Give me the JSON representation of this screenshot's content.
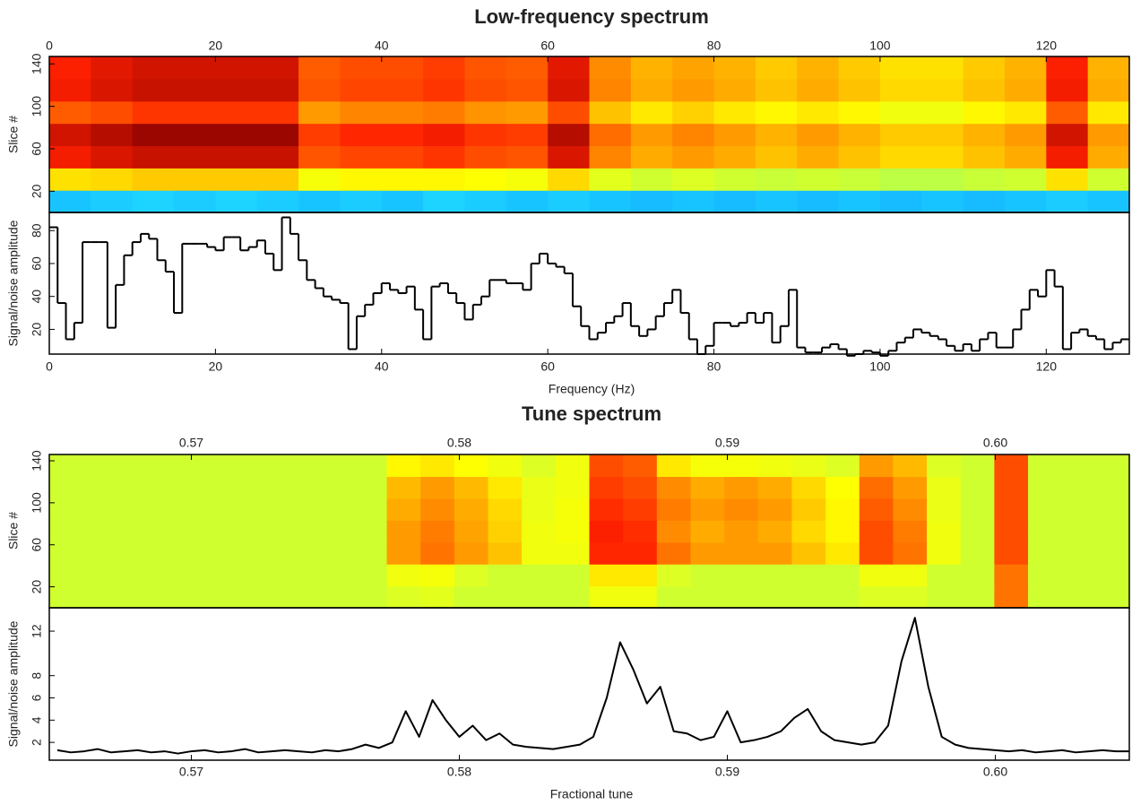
{
  "chart_data": [
    {
      "type": "spectrogram",
      "title": "Low-frequency spectrum",
      "xlabel": "Frequency (Hz)",
      "xlim": [
        0,
        130
      ],
      "xticks": [
        0,
        20,
        40,
        60,
        80,
        100,
        120
      ],
      "colormap": [
        "#00008f",
        "#0070ff",
        "#20e0ff",
        "#a0ff60",
        "#ffff00",
        "#ff9000",
        "#ff2000",
        "#800000"
      ],
      "heatmap": {
        "ylabel": "Slice #",
        "ylim": [
          0,
          147
        ],
        "yticks": [
          20,
          60,
          100,
          140
        ],
        "z": [
          [
            0.25,
            0.26,
            0.27,
            0.26,
            0.27,
            0.26,
            0.25,
            0.26,
            0.25,
            0.27,
            0.26,
            0.25,
            0.26,
            0.25,
            0.24,
            0.25,
            0.24,
            0.25,
            0.24,
            0.25,
            0.24,
            0.25,
            0.24,
            0.25,
            0.26,
            0.25
          ],
          [
            0.61,
            0.62,
            0.64,
            0.64,
            0.64,
            0.64,
            0.56,
            0.58,
            0.58,
            0.58,
            0.57,
            0.56,
            0.62,
            0.53,
            0.5,
            0.52,
            0.5,
            0.49,
            0.5,
            0.49,
            0.47,
            0.47,
            0.49,
            0.5,
            0.61,
            0.5
          ],
          [
            0.87,
            0.9,
            0.92,
            0.92,
            0.92,
            0.92,
            0.79,
            0.81,
            0.81,
            0.83,
            0.8,
            0.79,
            0.9,
            0.73,
            0.68,
            0.7,
            0.68,
            0.65,
            0.68,
            0.65,
            0.62,
            0.62,
            0.65,
            0.68,
            0.87,
            0.68
          ],
          [
            0.91,
            0.94,
            0.97,
            0.97,
            0.97,
            0.97,
            0.82,
            0.85,
            0.85,
            0.87,
            0.83,
            0.82,
            0.94,
            0.76,
            0.7,
            0.73,
            0.7,
            0.67,
            0.7,
            0.67,
            0.64,
            0.64,
            0.67,
            0.7,
            0.91,
            0.7
          ],
          [
            0.78,
            0.8,
            0.83,
            0.83,
            0.83,
            0.83,
            0.7,
            0.73,
            0.73,
            0.74,
            0.71,
            0.7,
            0.8,
            0.65,
            0.6,
            0.63,
            0.6,
            0.58,
            0.6,
            0.58,
            0.55,
            0.55,
            0.58,
            0.6,
            0.78,
            0.6
          ],
          [
            0.87,
            0.9,
            0.92,
            0.92,
            0.92,
            0.92,
            0.79,
            0.81,
            0.81,
            0.83,
            0.8,
            0.79,
            0.9,
            0.73,
            0.68,
            0.7,
            0.68,
            0.65,
            0.68,
            0.65,
            0.62,
            0.62,
            0.65,
            0.68,
            0.87,
            0.68
          ],
          [
            0.86,
            0.89,
            0.91,
            0.91,
            0.91,
            0.91,
            0.78,
            0.8,
            0.8,
            0.82,
            0.79,
            0.78,
            0.89,
            0.72,
            0.67,
            0.69,
            0.67,
            0.64,
            0.67,
            0.64,
            0.61,
            0.61,
            0.64,
            0.67,
            0.86,
            0.67
          ]
        ]
      },
      "profile": {
        "ylabel": "Signal/noise amplitude",
        "ylim": [
          5,
          91
        ],
        "yticks": [
          20,
          40,
          60,
          80
        ],
        "color": "#000000",
        "step": true,
        "x": [
          0,
          1,
          2,
          3,
          4,
          5,
          6,
          7,
          8,
          9,
          10,
          11,
          12,
          13,
          14,
          15,
          16,
          17,
          18,
          19,
          20,
          21,
          22,
          23,
          24,
          25,
          26,
          27,
          28,
          29,
          30,
          31,
          32,
          33,
          34,
          35,
          36,
          37,
          38,
          39,
          40,
          41,
          42,
          43,
          44,
          45,
          46,
          47,
          48,
          49,
          50,
          51,
          52,
          53,
          54,
          55,
          56,
          57,
          58,
          59,
          60,
          61,
          62,
          63,
          64,
          65,
          66,
          67,
          68,
          69,
          70,
          71,
          72,
          73,
          74,
          75,
          76,
          77,
          78,
          79,
          80,
          81,
          82,
          83,
          84,
          85,
          86,
          87,
          88,
          89,
          90,
          91,
          92,
          93,
          94,
          95,
          96,
          97,
          98,
          99,
          100,
          101,
          102,
          103,
          104,
          105,
          106,
          107,
          108,
          109,
          110,
          111,
          112,
          113,
          114,
          115,
          116,
          117,
          118,
          119,
          120,
          121,
          122,
          123,
          124,
          125,
          126,
          127,
          128,
          129
        ],
        "values": [
          82,
          36,
          14,
          24,
          73,
          73,
          73,
          21,
          47,
          65,
          73,
          78,
          75,
          62,
          55,
          30,
          72,
          72,
          72,
          70,
          68,
          76,
          76,
          68,
          70,
          74,
          66,
          56,
          88,
          78,
          62,
          50,
          45,
          40,
          38,
          36,
          8,
          28,
          35,
          42,
          48,
          44,
          42,
          46,
          32,
          14,
          46,
          48,
          42,
          36,
          26,
          35,
          40,
          50,
          50,
          48,
          48,
          44,
          60,
          66,
          60,
          58,
          54,
          34,
          22,
          14,
          18,
          24,
          28,
          36,
          22,
          16,
          20,
          28,
          36,
          44,
          30,
          14,
          5,
          10,
          24,
          24,
          22,
          24,
          30,
          24,
          30,
          12,
          22,
          44,
          9,
          6,
          6,
          9,
          11,
          8,
          4,
          5,
          7,
          6,
          4,
          7,
          12,
          15,
          20,
          18,
          16,
          14,
          10,
          7,
          11,
          7,
          14,
          18,
          9,
          9,
          20,
          32,
          44,
          40,
          56,
          46,
          8,
          18,
          20,
          16,
          14,
          8,
          12,
          14
        ]
      }
    },
    {
      "type": "spectrogram",
      "title": "Tune spectrum",
      "xlabel": "Fractional tune",
      "xlim": [
        0.5647,
        0.605
      ],
      "xticks": [
        0.57,
        0.58,
        0.59,
        {
          "value": 0.6,
          "label": "0.60"
        }
      ],
      "colormap": [
        "#00008f",
        "#0070ff",
        "#20e0ff",
        "#a0ff60",
        "#ffff00",
        "#ff9000",
        "#ff2000",
        "#800000"
      ],
      "heatmap": {
        "ylabel": "Slice #",
        "ylim": [
          0,
          146
        ],
        "yticks": [
          20,
          60,
          100,
          140
        ],
        "z": [
          [
            0.5,
            0.5,
            0.5,
            0.5,
            0.5,
            0.5,
            0.5,
            0.5,
            0.5,
            0.5,
            0.52,
            0.53,
            0.5,
            0.5,
            0.5,
            0.5,
            0.55,
            0.55,
            0.5,
            0.5,
            0.5,
            0.5,
            0.5,
            0.5,
            0.52,
            0.52,
            0.5,
            0.5,
            0.75,
            0.5,
            0.5,
            0.5
          ],
          [
            0.5,
            0.5,
            0.5,
            0.5,
            0.5,
            0.5,
            0.5,
            0.5,
            0.5,
            0.5,
            0.55,
            0.56,
            0.52,
            0.5,
            0.5,
            0.5,
            0.6,
            0.6,
            0.52,
            0.5,
            0.5,
            0.5,
            0.5,
            0.5,
            0.55,
            0.55,
            0.5,
            0.5,
            0.75,
            0.5,
            0.5,
            0.5
          ],
          [
            0.5,
            0.5,
            0.5,
            0.5,
            0.5,
            0.5,
            0.5,
            0.5,
            0.5,
            0.5,
            0.7,
            0.75,
            0.7,
            0.65,
            0.55,
            0.55,
            0.85,
            0.85,
            0.75,
            0.7,
            0.7,
            0.7,
            0.65,
            0.6,
            0.8,
            0.75,
            0.55,
            0.5,
            0.8,
            0.5,
            0.5,
            0.5
          ],
          [
            0.5,
            0.5,
            0.5,
            0.5,
            0.5,
            0.5,
            0.5,
            0.5,
            0.5,
            0.5,
            0.7,
            0.74,
            0.69,
            0.63,
            0.55,
            0.56,
            0.86,
            0.84,
            0.72,
            0.68,
            0.7,
            0.68,
            0.62,
            0.58,
            0.8,
            0.74,
            0.55,
            0.5,
            0.8,
            0.5,
            0.5,
            0.5
          ],
          [
            0.5,
            0.5,
            0.5,
            0.5,
            0.5,
            0.5,
            0.5,
            0.5,
            0.5,
            0.5,
            0.68,
            0.72,
            0.68,
            0.62,
            0.54,
            0.56,
            0.84,
            0.82,
            0.74,
            0.7,
            0.72,
            0.7,
            0.64,
            0.58,
            0.78,
            0.72,
            0.54,
            0.5,
            0.8,
            0.5,
            0.5,
            0.5
          ],
          [
            0.5,
            0.5,
            0.5,
            0.5,
            0.5,
            0.5,
            0.5,
            0.5,
            0.5,
            0.5,
            0.66,
            0.7,
            0.66,
            0.6,
            0.54,
            0.55,
            0.82,
            0.8,
            0.72,
            0.68,
            0.7,
            0.68,
            0.62,
            0.57,
            0.76,
            0.7,
            0.54,
            0.5,
            0.8,
            0.5,
            0.5,
            0.5
          ],
          [
            0.5,
            0.5,
            0.5,
            0.5,
            0.5,
            0.5,
            0.5,
            0.5,
            0.5,
            0.5,
            0.58,
            0.6,
            0.57,
            0.55,
            0.52,
            0.55,
            0.8,
            0.78,
            0.6,
            0.56,
            0.56,
            0.55,
            0.54,
            0.52,
            0.7,
            0.66,
            0.52,
            0.5,
            0.8,
            0.5,
            0.5,
            0.5
          ]
        ]
      },
      "profile": {
        "ylabel": "Signal/noise amplitude",
        "ylim": [
          0.4,
          14.1
        ],
        "yticks": [
          2,
          4,
          6,
          8,
          12
        ],
        "color": "#000000",
        "step": false,
        "x": [
          0.565,
          0.5655,
          0.566,
          0.5665,
          0.567,
          0.5675,
          0.568,
          0.5685,
          0.569,
          0.5695,
          0.57,
          0.5705,
          0.571,
          0.5715,
          0.572,
          0.5725,
          0.573,
          0.5735,
          0.574,
          0.5745,
          0.575,
          0.5755,
          0.576,
          0.5765,
          0.577,
          0.5775,
          0.578,
          0.5785,
          0.579,
          0.5795,
          0.58,
          0.5805,
          0.581,
          0.5815,
          0.582,
          0.5825,
          0.583,
          0.5835,
          0.584,
          0.5845,
          0.585,
          0.5855,
          0.586,
          0.5865,
          0.587,
          0.5875,
          0.588,
          0.5885,
          0.589,
          0.5895,
          0.59,
          0.5905,
          0.591,
          0.5915,
          0.592,
          0.5925,
          0.593,
          0.5935,
          0.594,
          0.5945,
          0.595,
          0.5955,
          0.596,
          0.5965,
          0.597,
          0.5975,
          0.598,
          0.5985,
          0.599,
          0.5995,
          0.6,
          0.6005,
          0.601,
          0.6015,
          0.602,
          0.6025,
          0.603,
          0.6035,
          0.604,
          0.6045,
          0.605
        ],
        "values": [
          1.3,
          1.1,
          1.2,
          1.4,
          1.1,
          1.2,
          1.3,
          1.1,
          1.2,
          1.0,
          1.2,
          1.3,
          1.1,
          1.2,
          1.4,
          1.1,
          1.2,
          1.3,
          1.2,
          1.1,
          1.3,
          1.2,
          1.4,
          1.8,
          1.5,
          2.0,
          4.8,
          2.5,
          5.8,
          4.0,
          2.5,
          3.5,
          2.2,
          2.8,
          1.8,
          1.6,
          1.5,
          1.4,
          1.6,
          1.8,
          2.5,
          6.0,
          11.0,
          8.5,
          5.5,
          7.0,
          3.0,
          2.8,
          2.2,
          2.5,
          4.8,
          2.0,
          2.2,
          2.5,
          3.0,
          4.2,
          5.0,
          3.0,
          2.2,
          2.0,
          1.8,
          2.0,
          3.5,
          9.3,
          13.2,
          7.0,
          2.5,
          1.8,
          1.5,
          1.4,
          1.3,
          1.2,
          1.3,
          1.1,
          1.2,
          1.3,
          1.1,
          1.2,
          1.3,
          1.2,
          1.2
        ]
      }
    }
  ]
}
